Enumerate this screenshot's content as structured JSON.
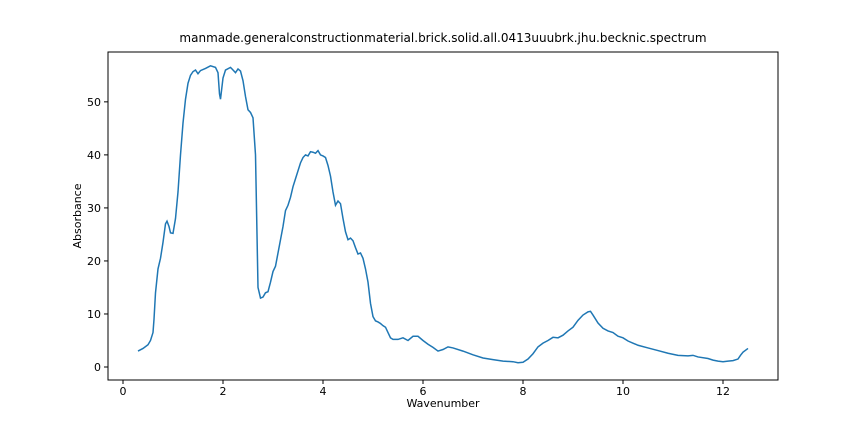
{
  "chart_data": {
    "type": "line",
    "title": "manmade.generalconstructionmaterial.brick.solid.all.0413uuubrk.jhu.becknic.spectrum",
    "x_label": "Wavenumber",
    "y_label": "Absorbance",
    "xlim": [
      -0.3,
      13.1
    ],
    "ylim": [
      -2.45,
      59.4
    ],
    "xticks": [
      0,
      2,
      4,
      6,
      8,
      10,
      12
    ],
    "yticks": [
      0,
      10,
      20,
      30,
      40,
      50
    ],
    "grid": false,
    "x": [
      0.3,
      0.4,
      0.5,
      0.55,
      0.6,
      0.62,
      0.65,
      0.7,
      0.75,
      0.8,
      0.85,
      0.88,
      0.92,
      0.95,
      1.0,
      1.05,
      1.1,
      1.15,
      1.2,
      1.25,
      1.3,
      1.35,
      1.4,
      1.45,
      1.5,
      1.55,
      1.65,
      1.75,
      1.85,
      1.9,
      1.93,
      1.95,
      2.0,
      2.05,
      2.15,
      2.2,
      2.25,
      2.3,
      2.35,
      2.4,
      2.45,
      2.5,
      2.55,
      2.6,
      2.65,
      2.68,
      2.7,
      2.75,
      2.8,
      2.85,
      2.9,
      2.95,
      3.0,
      3.05,
      3.1,
      3.15,
      3.2,
      3.25,
      3.3,
      3.35,
      3.4,
      3.45,
      3.5,
      3.55,
      3.6,
      3.65,
      3.7,
      3.75,
      3.8,
      3.85,
      3.9,
      3.95,
      4.0,
      4.05,
      4.1,
      4.15,
      4.2,
      4.25,
      4.3,
      4.35,
      4.4,
      4.45,
      4.5,
      4.55,
      4.6,
      4.65,
      4.7,
      4.75,
      4.8,
      4.85,
      4.9,
      4.95,
      5.0,
      5.05,
      5.1,
      5.15,
      5.2,
      5.25,
      5.3,
      5.35,
      5.4,
      5.5,
      5.6,
      5.7,
      5.8,
      5.9,
      6.0,
      6.1,
      6.2,
      6.3,
      6.4,
      6.5,
      6.6,
      6.8,
      7.0,
      7.2,
      7.4,
      7.6,
      7.8,
      7.9,
      8.0,
      8.1,
      8.2,
      8.3,
      8.4,
      8.5,
      8.6,
      8.7,
      8.8,
      8.9,
      9.0,
      9.1,
      9.2,
      9.3,
      9.35,
      9.4,
      9.5,
      9.6,
      9.7,
      9.8,
      9.9,
      10.0,
      10.1,
      10.2,
      10.3,
      10.5,
      10.7,
      10.9,
      11.1,
      11.3,
      11.4,
      11.5,
      11.7,
      11.8,
      11.9,
      12.0,
      12.1,
      12.2,
      12.3,
      12.35,
      12.4,
      12.5
    ],
    "series": [
      {
        "name": "spectrum",
        "color": "#1f77b4",
        "values": [
          3.0,
          3.5,
          4.2,
          5,
          6.5,
          9,
          14,
          18.5,
          20.5,
          23.5,
          27,
          27.5,
          26.5,
          25.3,
          25.2,
          28,
          33,
          40,
          46,
          50.5,
          53.5,
          55,
          55.7,
          56,
          55.3,
          55.9,
          56.3,
          56.8,
          56.5,
          55.5,
          51.5,
          50.5,
          54.5,
          56,
          56.5,
          56,
          55.5,
          56.2,
          55.8,
          54,
          51,
          48.5,
          48,
          47,
          40,
          25,
          15,
          13,
          13.2,
          14,
          14.2,
          16,
          18,
          19,
          21.5,
          24,
          26.5,
          29.5,
          30.5,
          32,
          34,
          35.5,
          37,
          38.5,
          39.5,
          40,
          39.8,
          40.6,
          40.5,
          40.3,
          40.8,
          40,
          39.8,
          39.5,
          38,
          36,
          33,
          30.5,
          31.3,
          30.8,
          28,
          25.5,
          24,
          24.3,
          23.8,
          22.5,
          21.3,
          21.5,
          20.5,
          18.5,
          16,
          12,
          9.5,
          8.7,
          8.5,
          8.2,
          7.8,
          7.5,
          6.5,
          5.5,
          5.2,
          5.2,
          5.5,
          5.0,
          5.8,
          5.8,
          5.0,
          4.3,
          3.7,
          3.0,
          3.3,
          3.8,
          3.6,
          3.0,
          2.3,
          1.7,
          1.4,
          1.1,
          1.0,
          0.8,
          0.9,
          1.5,
          2.5,
          3.8,
          4.5,
          5.0,
          5.6,
          5.5,
          6.0,
          6.8,
          7.5,
          8.8,
          9.8,
          10.4,
          10.5,
          9.8,
          8.3,
          7.3,
          6.8,
          6.5,
          5.8,
          5.5,
          4.9,
          4.5,
          4.1,
          3.6,
          3.1,
          2.6,
          2.2,
          2.1,
          2.2,
          1.9,
          1.6,
          1.3,
          1.1,
          1.0,
          1.1,
          1.2,
          1.5,
          2.2,
          2.8,
          3.5
        ]
      }
    ]
  }
}
